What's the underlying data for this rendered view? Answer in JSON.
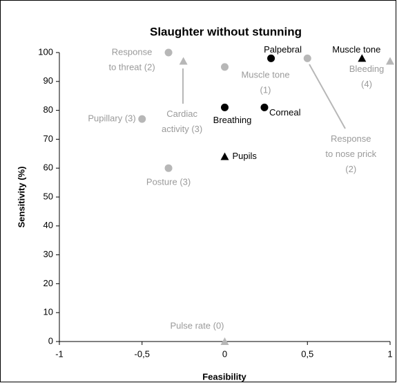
{
  "chart_data": {
    "type": "scatter",
    "title": "Slaughter without stunning",
    "x_label": "Feasibility",
    "y_label": "Sensitivity (%)",
    "xlim": [
      -1,
      1
    ],
    "ylim": [
      0,
      100
    ],
    "xticks": [
      -1,
      {
        "value": -0.5,
        "label": "-0,5"
      },
      0,
      {
        "value": 0.5,
        "label": "0,5"
      },
      1
    ],
    "yticks": [
      0,
      10,
      20,
      30,
      40,
      50,
      60,
      70,
      80,
      90,
      100
    ],
    "points": [
      {
        "x": -0.34,
        "y": 100,
        "marker": "circle",
        "color": "#b7b7b7",
        "label_color": "#9a9a9a",
        "label": [
          "Response",
          "to threat (2)"
        ]
      },
      {
        "x": -0.5,
        "y": 77,
        "marker": "circle",
        "color": "#b7b7b7",
        "label_color": "#9a9a9a",
        "label": [
          "Pupillary (3)"
        ]
      },
      {
        "x": -0.34,
        "y": 60,
        "marker": "circle",
        "color": "#b7b7b7",
        "label_color": "#9a9a9a",
        "label": [
          "Posture (3)"
        ]
      },
      {
        "x": 0,
        "y": 95,
        "marker": "circle",
        "color": "#b7b7b7",
        "label_color": "#9a9a9a",
        "label": [
          "Muscle tone",
          "(1)"
        ]
      },
      {
        "x": 0.5,
        "y": 98,
        "marker": "circle",
        "color": "#b7b7b7",
        "label_color": "#9a9a9a",
        "label": [
          "Response",
          "to nose prick",
          "(2)"
        ]
      },
      {
        "x": -0.25,
        "y": 97,
        "marker": "triangle",
        "color": "#b7b7b7",
        "label_color": "#9a9a9a",
        "label": [
          "Cardiac",
          "activity (3)"
        ]
      },
      {
        "x": 1,
        "y": 97,
        "marker": "triangle",
        "color": "#b7b7b7",
        "label_color": "#9a9a9a",
        "label": [
          "Bleeding",
          "(4)"
        ]
      },
      {
        "x": 0,
        "y": 0,
        "marker": "triangle",
        "color": "#b7b7b7",
        "label_color": "#9a9a9a",
        "label": [
          "Pulse rate (0)"
        ]
      },
      {
        "x": 0.28,
        "y": 98,
        "marker": "circle",
        "color": "#000000",
        "label_color": "#000000",
        "label": [
          "Palpebral"
        ]
      },
      {
        "x": 0.24,
        "y": 81,
        "marker": "circle",
        "color": "#000000",
        "label_color": "#000000",
        "label": [
          "Corneal"
        ]
      },
      {
        "x": 0,
        "y": 81,
        "marker": "circle",
        "color": "#000000",
        "label_color": "#000000",
        "label": [
          "Breathing"
        ]
      },
      {
        "x": 0,
        "y": 64,
        "marker": "triangle",
        "color": "#000000",
        "label_color": "#000000",
        "label": [
          "Pupils"
        ]
      },
      {
        "x": 0.83,
        "y": 98,
        "marker": "triangle",
        "color": "#000000",
        "label_color": "#000000",
        "label": [
          "Muscle tone"
        ]
      }
    ]
  }
}
